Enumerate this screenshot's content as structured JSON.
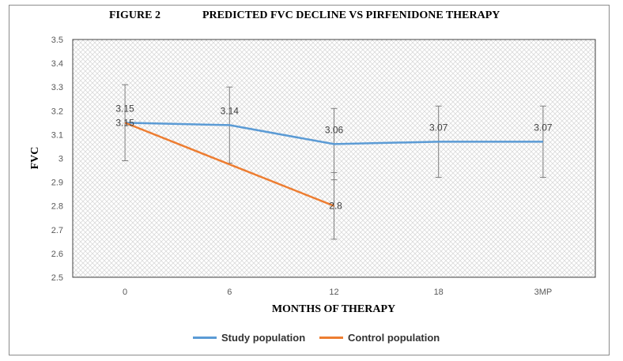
{
  "title": {
    "figure_label": "FIGURE 2",
    "text": "PREDICTED FVC DECLINE VS PIRFENIDONE THERAPY"
  },
  "colors": {
    "study": "#5b9bd5",
    "control": "#ed7d31",
    "error_bar": "#7f7f7f",
    "axis_border": "#404040",
    "hatch": "#d6d6d6"
  },
  "chart_data": {
    "type": "line",
    "title": "PREDICTED FVC DECLINE VS PIRFENIDONE THERAPY",
    "xlabel": "MONTHS OF THERAPY",
    "ylabel": "FVC",
    "categories": [
      "0",
      "6",
      "12",
      "18",
      "3MP"
    ],
    "ylim": [
      2.5,
      3.5
    ],
    "yticks": [
      "2.5",
      "2.6",
      "2.7",
      "2.8",
      "2.9",
      "3",
      "3.1",
      "3.2",
      "3.3",
      "3.4",
      "3.5"
    ],
    "grid": "hatched",
    "legend_position": "bottom",
    "series": [
      {
        "name": "Study population",
        "values": [
          3.15,
          3.14,
          3.06,
          3.07,
          3.07
        ],
        "labels": [
          "3.15",
          "3.14",
          "3.06",
          "3.07",
          "3.07"
        ],
        "error_low": [
          2.99,
          2.98,
          2.91,
          2.92,
          2.92
        ],
        "error_high": [
          3.31,
          3.3,
          3.21,
          3.22,
          3.22
        ]
      },
      {
        "name": "Control population",
        "values": [
          3.15,
          null,
          2.8,
          null,
          null
        ],
        "labels": [
          "3.15",
          "",
          "2.8",
          "",
          ""
        ],
        "error_low": [
          null,
          null,
          2.66,
          null,
          null
        ],
        "error_high": [
          null,
          null,
          2.94,
          null,
          null
        ]
      }
    ]
  }
}
